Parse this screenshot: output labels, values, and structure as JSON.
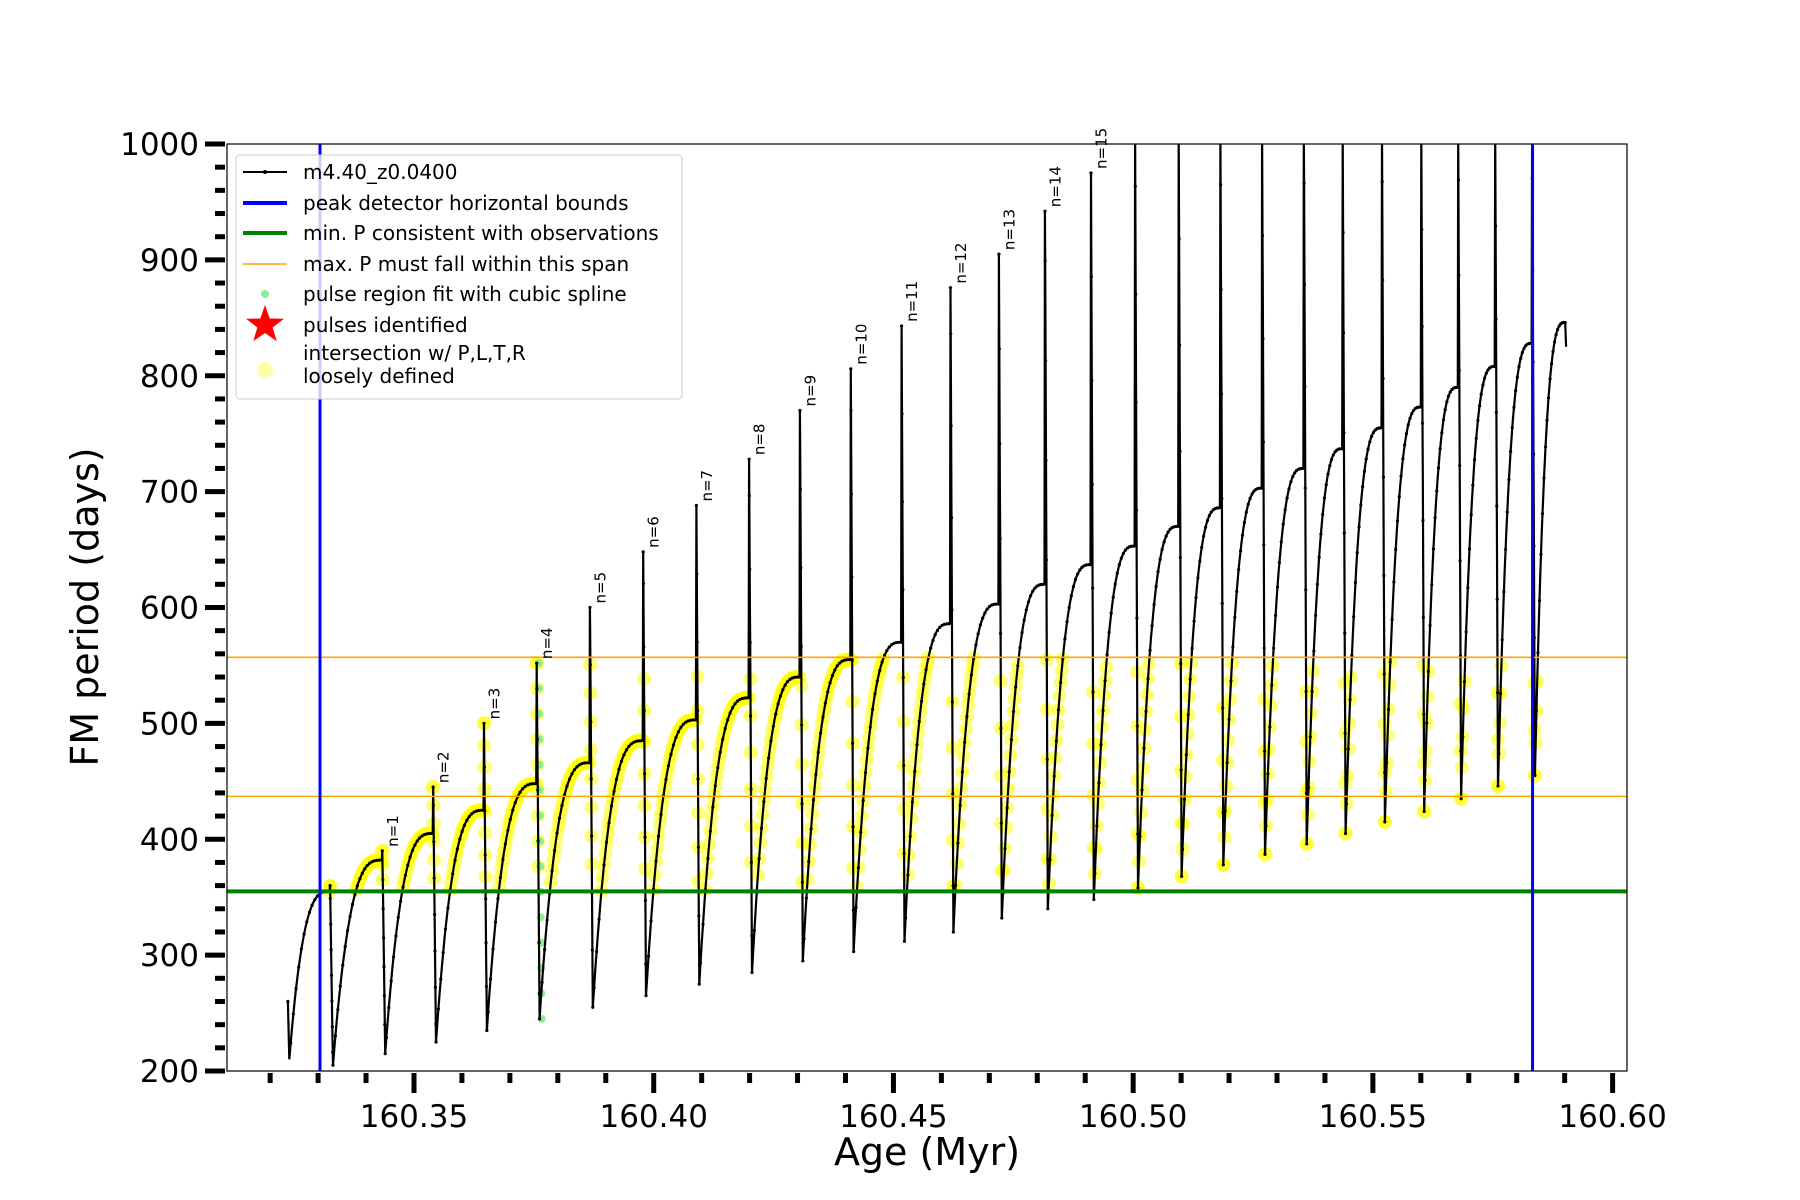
{
  "chart_data": {
    "type": "line",
    "xlabel": "Age (Myr)",
    "ylabel": "FM period (days)",
    "xlim": [
      160.311,
      160.603
    ],
    "ylim": [
      200,
      1000
    ],
    "xticks": [
      160.35,
      160.4,
      160.45,
      160.5,
      160.55,
      160.6
    ],
    "xtick_labels": [
      "160.35",
      "160.40",
      "160.45",
      "160.50",
      "160.55",
      "160.60"
    ],
    "yticks": [
      200,
      300,
      400,
      500,
      600,
      700,
      800,
      900,
      1000
    ],
    "ytick_labels": [
      "200",
      "300",
      "400",
      "500",
      "600",
      "700",
      "800",
      "900",
      "1000"
    ],
    "grid": false,
    "legend_placement": "upper-left",
    "legend": [
      {
        "label": "m4.40_z0.0400",
        "kind": "line-marker",
        "color": "#000000"
      },
      {
        "label": "peak detector horizontal bounds",
        "kind": "thick-line",
        "color": "#0000ff"
      },
      {
        "label": "min. P consistent with observations",
        "kind": "thick-line",
        "color": "#008000"
      },
      {
        "label": "max. P must fall within this span",
        "kind": "thin-line",
        "color": "#ffa500"
      },
      {
        "label": "pulse region fit with cubic spline",
        "kind": "dot",
        "color": "#90ee90"
      },
      {
        "label": "pulses identified",
        "kind": "star",
        "color": "#ff0000"
      },
      {
        "label": "intersection w/ P,L,T,R",
        "label2": "loosely defined",
        "kind": "big-dot",
        "color": "#ffffaa"
      }
    ],
    "vlines": [
      {
        "x": 160.3304,
        "color": "#0000ff"
      },
      {
        "x": 160.5833,
        "color": "#0000ff"
      }
    ],
    "hlines": [
      {
        "y": 355,
        "color": "#008000"
      },
      {
        "y": 557,
        "color": "#ffa500"
      },
      {
        "y": 437,
        "color": "#ffa500"
      }
    ],
    "series": [
      {
        "name": "m4.40_z0.0400",
        "color": "#000000",
        "start": {
          "age": 160.3237,
          "p": 260,
          "dip": 210
        },
        "end": {
          "age": 160.5901,
          "p": 846,
          "final": 825
        },
        "pulse_ages": [
          160.3324,
          160.3433,
          160.3539,
          160.3645,
          160.3755,
          160.3866,
          160.3977,
          160.4088,
          160.4198,
          160.4304,
          160.441,
          160.4516,
          160.4618,
          160.4719,
          160.4815,
          160.4911,
          160.5003,
          160.5094,
          160.5181,
          160.5268,
          160.5355,
          160.5436,
          160.5518,
          160.56,
          160.5677,
          160.5754,
          160.5831
        ],
        "pre_pulse_p": [
          355,
          382,
          405,
          425,
          448,
          466,
          485,
          503,
          522,
          540,
          555,
          570,
          586,
          603,
          620,
          637,
          653,
          670,
          686,
          703,
          720,
          737,
          755,
          773,
          790,
          808,
          828
        ],
        "spike_p": [
          360,
          390,
          445,
          500,
          552,
          600,
          648,
          688,
          728,
          770,
          806,
          843,
          876,
          905,
          942,
          975,
          1010,
          1010,
          1010,
          1010,
          1010,
          1010,
          1010,
          1010,
          1010,
          1010,
          1010
        ],
        "dip_p": [
          205,
          215,
          225,
          235,
          245,
          255,
          265,
          275,
          285,
          295,
          303,
          312,
          320,
          332,
          340,
          348,
          358,
          368,
          378,
          387,
          396,
          405,
          415,
          424,
          435,
          446,
          455
        ],
        "pulse_labels": [
          "",
          "n=1",
          "n=2",
          "n=3",
          "n=4",
          "n=5",
          "n=6",
          "n=7",
          "n=8",
          "n=9",
          "n=10",
          "n=11",
          "n=12",
          "n=13",
          "n=14",
          "n=15",
          "",
          "",
          "",
          "",
          "",
          "",
          "",
          "",
          "",
          "",
          ""
        ]
      }
    ],
    "intersection_range": [
      355,
      557
    ],
    "spline_fit_pulse": 4
  }
}
